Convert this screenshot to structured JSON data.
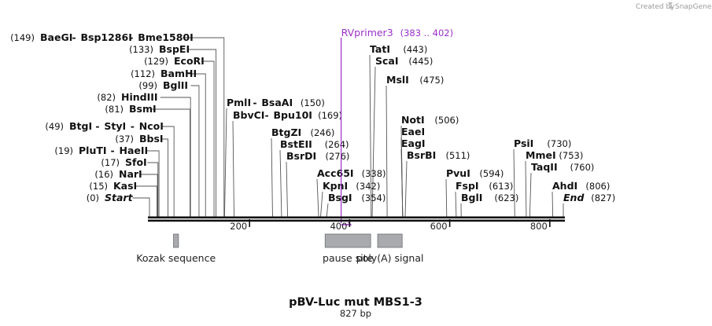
{
  "credit": {
    "prefix": "Created by",
    "brand": "SnapGene",
    "logo_icon": "snapgene-logo-icon"
  },
  "title": "pBV-Luc mut MBS1-3",
  "subtitle": "827 bp",
  "sequence": {
    "length": 827
  },
  "ruler": {
    "ticks": [
      200,
      400,
      600,
      800
    ]
  },
  "colors": {
    "backbone": "#111111",
    "feature": "#a8aaad",
    "feature_stroke": "#6d6f72",
    "primer": "#9b30c8"
  },
  "features": [
    {
      "name": "Kozak sequence",
      "start": 48,
      "end": 58
    },
    {
      "name": "pause site",
      "start": 351,
      "end": 442
    },
    {
      "name": "poly(A) signal",
      "start": 456,
      "end": 505
    }
  ],
  "primer": {
    "name": "RVprimer3",
    "range": "(383 .. 402)",
    "start": 383,
    "end": 402
  },
  "sites": [
    {
      "names": [
        {
          "t": "BaeGI"
        },
        {
          "t": "Bsp1286I"
        },
        {
          "t": "Bme1580I"
        }
      ],
      "pos": "(149)",
      "bp": 149,
      "pos_side": "left"
    },
    {
      "names": [
        {
          "t": "BspEI"
        }
      ],
      "pos": "(133)",
      "bp": 133,
      "pos_side": "left"
    },
    {
      "names": [
        {
          "t": "EcoRI"
        }
      ],
      "pos": "(129)",
      "bp": 129,
      "pos_side": "left"
    },
    {
      "names": [
        {
          "t": "BamHI"
        }
      ],
      "pos": "(112)",
      "bp": 112,
      "pos_side": "left"
    },
    {
      "names": [
        {
          "t": "BglII"
        }
      ],
      "pos": "(99)",
      "bp": 99,
      "pos_side": "left"
    },
    {
      "names": [
        {
          "t": "HindIII"
        }
      ],
      "pos": "(82)",
      "bp": 82,
      "pos_side": "left"
    },
    {
      "names": [
        {
          "t": "BsmI"
        }
      ],
      "pos": "(81)",
      "bp": 81,
      "pos_side": "left"
    },
    {
      "names": [
        {
          "t": "BtgI"
        },
        {
          "t": "StyI"
        },
        {
          "t": "NcoI"
        }
      ],
      "pos": "(49)",
      "bp": 49,
      "pos_side": "left"
    },
    {
      "names": [
        {
          "t": "BbsI"
        }
      ],
      "pos": "(37)",
      "bp": 37,
      "pos_side": "left"
    },
    {
      "names": [
        {
          "t": "PluTI"
        },
        {
          "t": "HaeII"
        }
      ],
      "pos": "(19)",
      "bp": 19,
      "pos_side": "left"
    },
    {
      "names": [
        {
          "t": "SfoI"
        }
      ],
      "pos": "(17)",
      "bp": 17,
      "pos_side": "left"
    },
    {
      "names": [
        {
          "t": "NarI"
        }
      ],
      "pos": "(16)",
      "bp": 16,
      "pos_side": "left"
    },
    {
      "names": [
        {
          "t": "KasI"
        }
      ],
      "pos": "(15)",
      "bp": 15,
      "pos_side": "left"
    },
    {
      "names": [
        {
          "t": "Start",
          "it": true
        }
      ],
      "pos": "(0)",
      "bp": 0,
      "pos_side": "left"
    },
    {
      "names": [
        {
          "t": "PmlI"
        },
        {
          "t": "BsaAI"
        }
      ],
      "pos": "(150)",
      "bp": 150,
      "pos_side": "right"
    },
    {
      "names": [
        {
          "t": "BbvCI"
        },
        {
          "t": "Bpu10I"
        }
      ],
      "pos": "(169)",
      "bp": 169,
      "pos_side": "right"
    },
    {
      "names": [
        {
          "t": "BtgZI"
        }
      ],
      "pos": "(246)",
      "bp": 246,
      "pos_side": "right"
    },
    {
      "names": [
        {
          "t": "BstEII"
        }
      ],
      "pos": "(264)",
      "bp": 264,
      "pos_side": "right"
    },
    {
      "names": [
        {
          "t": "BsrDI"
        }
      ],
      "pos": "(276)",
      "bp": 276,
      "pos_side": "right"
    },
    {
      "names": [
        {
          "t": "Acc65I"
        }
      ],
      "pos": "(338)",
      "bp": 338,
      "pos_side": "right"
    },
    {
      "names": [
        {
          "t": "KpnI"
        }
      ],
      "pos": "(342)",
      "bp": 342,
      "pos_side": "right"
    },
    {
      "names": [
        {
          "t": "BsgI"
        }
      ],
      "pos": "(354)",
      "bp": 354,
      "pos_side": "right"
    },
    {
      "names": [
        {
          "t": "TatI"
        }
      ],
      "pos": "(443)",
      "bp": 443,
      "pos_side": "right"
    },
    {
      "names": [
        {
          "t": "ScaI"
        }
      ],
      "pos": "(445)",
      "bp": 445,
      "pos_side": "right"
    },
    {
      "names": [
        {
          "t": "MslI"
        }
      ],
      "pos": "(475)",
      "bp": 475,
      "pos_side": "right"
    },
    {
      "names": [
        {
          "t": "NotI"
        }
      ],
      "pos": "(506)",
      "bp": 506,
      "pos_side": "right"
    },
    {
      "names": [
        {
          "t": "EaeI"
        }
      ],
      "pos": "",
      "bp": 506,
      "pos_side": "right"
    },
    {
      "names": [
        {
          "t": "EagI"
        }
      ],
      "pos": "",
      "bp": 506,
      "pos_side": "right"
    },
    {
      "names": [
        {
          "t": "BsrBI"
        }
      ],
      "pos": "(511)",
      "bp": 511,
      "pos_side": "right"
    },
    {
      "names": [
        {
          "t": "PvuI"
        }
      ],
      "pos": "(594)",
      "bp": 594,
      "pos_side": "right"
    },
    {
      "names": [
        {
          "t": "FspI"
        }
      ],
      "pos": "(613)",
      "bp": 613,
      "pos_side": "right"
    },
    {
      "names": [
        {
          "t": "BglI"
        }
      ],
      "pos": "(623)",
      "bp": 623,
      "pos_side": "right"
    },
    {
      "names": [
        {
          "t": "PsiI"
        }
      ],
      "pos": "(730)",
      "bp": 730,
      "pos_side": "right"
    },
    {
      "names": [
        {
          "t": "MmeI"
        }
      ],
      "pos": "(753)",
      "bp": 753,
      "pos_side": "right"
    },
    {
      "names": [
        {
          "t": "TaqII"
        }
      ],
      "pos": "(760)",
      "bp": 760,
      "pos_side": "right"
    },
    {
      "names": [
        {
          "t": "AhdI"
        }
      ],
      "pos": "(806)",
      "bp": 806,
      "pos_side": "right"
    },
    {
      "names": [
        {
          "t": "End",
          "it": true
        }
      ],
      "pos": "(827)",
      "bp": 827,
      "pos_side": "right"
    }
  ]
}
